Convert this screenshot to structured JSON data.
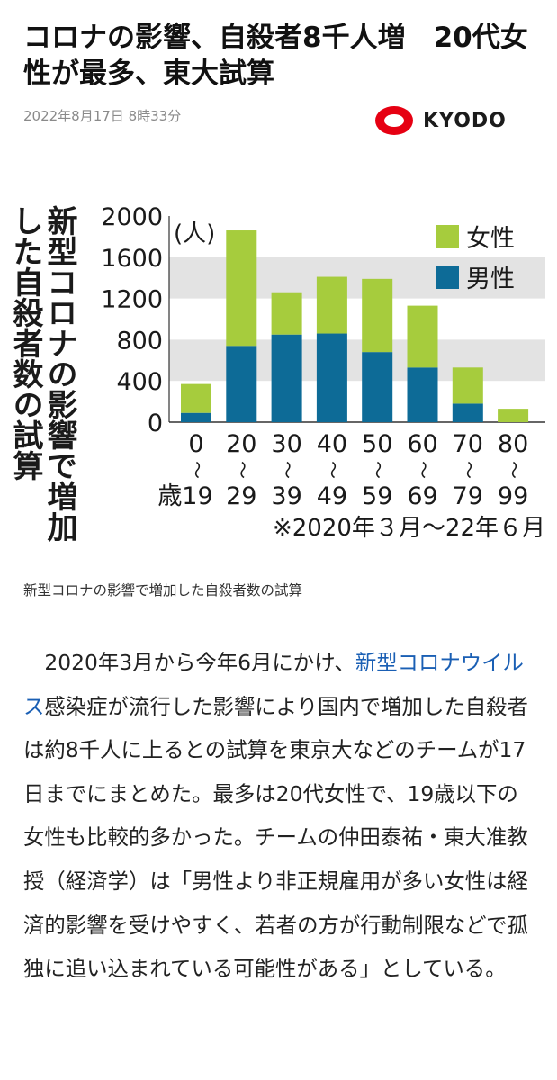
{
  "article": {
    "headline": "コロナの影響、自殺者8千人増　20代女性が最多、東大試算",
    "date": "2022年8月17日 8時33分",
    "source": {
      "name": "KYODO",
      "logo_color": "#e60012"
    },
    "figure_title_col1": "新型コロナの影響で増加",
    "figure_title_col2": "した自殺者数の試算",
    "caption": "新型コロナの影響で増加した自殺者数の試算",
    "body": {
      "lead": "2020年3月から今年6月にかけ、",
      "link_text": "新型コロナウイルス",
      "rest": "感染症が流行した影響により国内で増加した自殺者は約8千人に上るとの試算を東京大などのチームが17日までにまとめた。最多は20代女性で、19歳以下の女性も比較的多かった。チームの仲田泰祐・東大准教授（経済学）は「男性より非正規雇用が多い女性は経済的影響を受けやすく、若者の方が行動制限などで孤独に追い込まれている可能性がある」としている。"
    }
  },
  "chart_data": {
    "type": "bar",
    "stacked": true,
    "unit_label": "(人)",
    "categories": [
      {
        "top": "0",
        "bottom": "歳19"
      },
      {
        "top": "20",
        "bottom": "29"
      },
      {
        "top": "30",
        "bottom": "39"
      },
      {
        "top": "40",
        "bottom": "49"
      },
      {
        "top": "50",
        "bottom": "59"
      },
      {
        "top": "60",
        "bottom": "69"
      },
      {
        "top": "70",
        "bottom": "79"
      },
      {
        "top": "80",
        "bottom": "99"
      }
    ],
    "range_mark": "〜",
    "series": [
      {
        "name": "男性",
        "color": "#0d6b97",
        "values": [
          90,
          740,
          850,
          860,
          680,
          530,
          180,
          0
        ]
      },
      {
        "name": "女性",
        "color": "#a6cc3d",
        "values": [
          280,
          1120,
          410,
          550,
          710,
          600,
          350,
          130
        ]
      }
    ],
    "yticks": [
      "0",
      "400",
      "800",
      "1200",
      "1600",
      "2000"
    ],
    "ylim": [
      0,
      2000
    ],
    "legend_position": "top-right",
    "period_note": "※2020年３月〜22年６月",
    "band_color": "#e3e3e3"
  }
}
